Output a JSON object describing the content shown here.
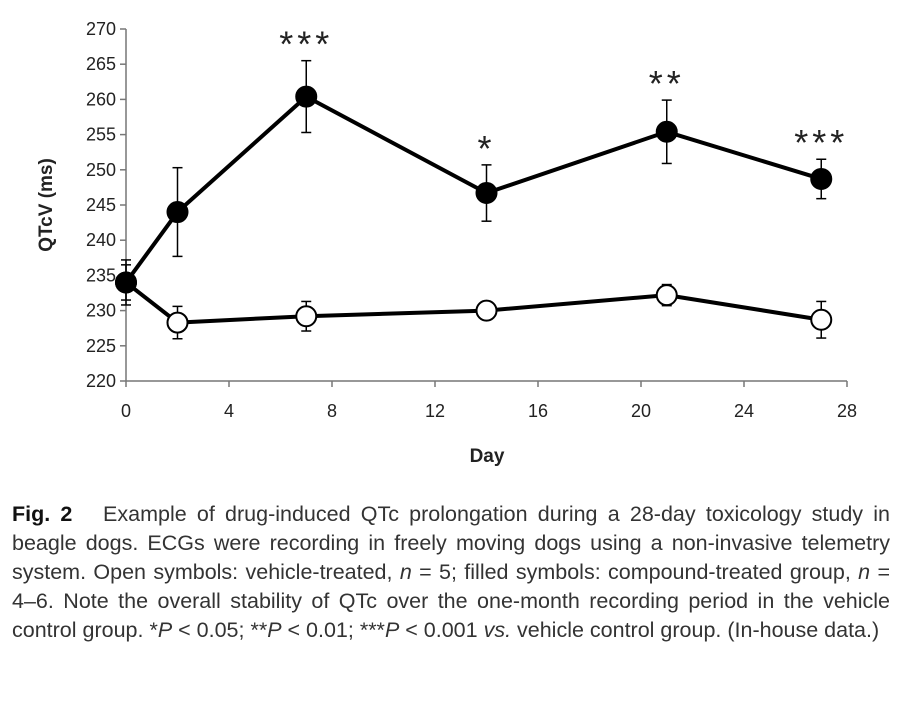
{
  "chart_data": {
    "type": "line",
    "xlabel": "Day",
    "ylabel": "QTcV (ms)",
    "xlim": [
      0,
      28
    ],
    "ylim": [
      220,
      270
    ],
    "xticks": [
      0,
      4,
      8,
      12,
      16,
      20,
      24,
      28
    ],
    "yticks": [
      220,
      225,
      230,
      235,
      240,
      245,
      250,
      255,
      260,
      265,
      270
    ],
    "grid": false,
    "series": [
      {
        "marker": "filled",
        "points": [
          {
            "x": 0,
            "y": 234,
            "err": 3.2,
            "sig": ""
          },
          {
            "x": 2,
            "y": 244,
            "err": 6.3,
            "sig": ""
          },
          {
            "x": 7,
            "y": 260.4,
            "err": 5.1,
            "sig": "***"
          },
          {
            "x": 14,
            "y": 246.7,
            "err": 4.0,
            "sig": "*"
          },
          {
            "x": 21,
            "y": 255.4,
            "err": 4.5,
            "sig": "**"
          },
          {
            "x": 27,
            "y": 248.7,
            "err": 2.8,
            "sig": "***"
          }
        ]
      },
      {
        "marker": "open",
        "points": [
          {
            "x": 0,
            "y": 234,
            "err": 2.5,
            "sig": ""
          },
          {
            "x": 2,
            "y": 228.3,
            "err": 2.3,
            "sig": ""
          },
          {
            "x": 7,
            "y": 229.2,
            "err": 2.1,
            "sig": ""
          },
          {
            "x": 14,
            "y": 230,
            "err": 0,
            "sig": ""
          },
          {
            "x": 21,
            "y": 232.2,
            "err": 1.5,
            "sig": ""
          },
          {
            "x": 27,
            "y": 228.7,
            "err": 2.6,
            "sig": ""
          }
        ]
      }
    ]
  },
  "caption": {
    "label": "Fig. 2",
    "text_1": "Example of drug-induced QTc prolongation during a 28-day toxicology study in beagle dogs. ECGs were recording in freely moving dogs using a non-invasive telemetry system. Open symbols: vehicle-treated, ",
    "n_symbol": "n",
    "text_2": " = 5; filled symbols: compound-treated group, ",
    "text_3": " = 4–6. Note the overall stability of QTc over the one-month recording period in the vehicle control group. *",
    "p_symbol": "P",
    "text_4": " < 0.05; **",
    "text_5": " < 0.01; ***",
    "text_6": " < 0.001 ",
    "vs": "vs.",
    "text_7": " vehicle control group. (In-house data.)"
  }
}
